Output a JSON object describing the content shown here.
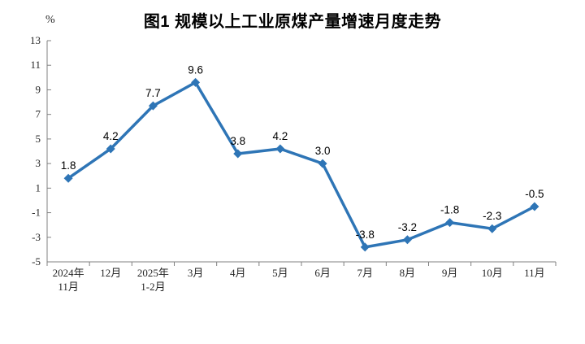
{
  "header": {
    "title": "图1 规模以上工业原煤产量增速月度走势",
    "unit_label": "%"
  },
  "chart_data": {
    "type": "line",
    "title": "图1 规模以上工业原煤产量增速月度走势",
    "unit": "%",
    "categories": [
      "2024年\n11月",
      "12月",
      "2025年\n1-2月",
      "3月",
      "4月",
      "5月",
      "6月",
      "7月",
      "8月",
      "9月",
      "10月",
      "11月"
    ],
    "values": [
      1.8,
      4.2,
      7.7,
      9.6,
      3.8,
      4.2,
      3.0,
      -3.8,
      -3.2,
      -1.8,
      -2.3,
      -0.5
    ],
    "labels": [
      "1.8",
      "4.2",
      "7.7",
      "9.6",
      "3.8",
      "4.2",
      "3.0",
      "-3.8",
      "-3.2",
      "-1.8",
      "-2.3",
      "-0.5"
    ],
    "ylabel": "%",
    "xlabel": "",
    "ylim": [
      -5,
      13
    ],
    "ytick_step": 2,
    "grid": false,
    "legend": "none",
    "marker": "diamond",
    "line_color": "#2E75B6",
    "axis_color": "#808080",
    "tick_label_color": "#262626",
    "data_label_color": "#000000"
  }
}
